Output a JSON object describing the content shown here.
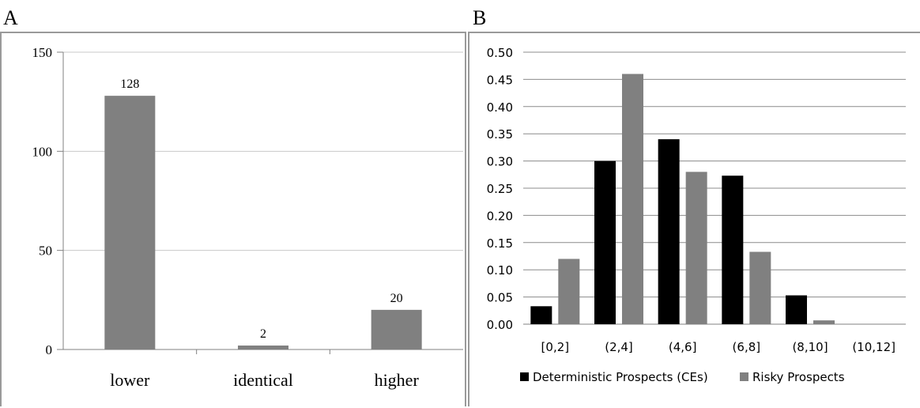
{
  "chart_data": [
    {
      "panel": "A",
      "type": "bar",
      "categories": [
        "lower",
        "identical",
        "higher"
      ],
      "values": [
        128,
        2,
        20
      ],
      "data_labels": [
        "128",
        "2",
        "20"
      ],
      "ylim": [
        0,
        150
      ],
      "yticks": [
        "0",
        "50",
        "100",
        "150"
      ],
      "grid": true,
      "colors": {
        "bar": "#808080",
        "grid": "#c8c8c8",
        "axis": "#808080"
      }
    },
    {
      "panel": "B",
      "type": "bar",
      "categories": [
        "[0,2]",
        "(2,4]",
        "(4,6]",
        "(6,8]",
        "(8,10]",
        "(10,12]"
      ],
      "series": [
        {
          "name": "Deterministic Prospects (CEs)",
          "color": "#000000",
          "values": [
            0.033,
            0.3,
            0.34,
            0.273,
            0.053,
            0.0
          ]
        },
        {
          "name": "Risky Prospects",
          "color": "#808080",
          "values": [
            0.12,
            0.46,
            0.28,
            0.133,
            0.007,
            0.0
          ]
        }
      ],
      "ylim": [
        0,
        0.5
      ],
      "yticks": [
        "0.00",
        "0.05",
        "0.10",
        "0.15",
        "0.20",
        "0.25",
        "0.30",
        "0.35",
        "0.40",
        "0.45",
        "0.50"
      ],
      "grid": true,
      "legend": "bottom"
    }
  ],
  "labels": {
    "panel_a": "A",
    "panel_b": "B"
  }
}
